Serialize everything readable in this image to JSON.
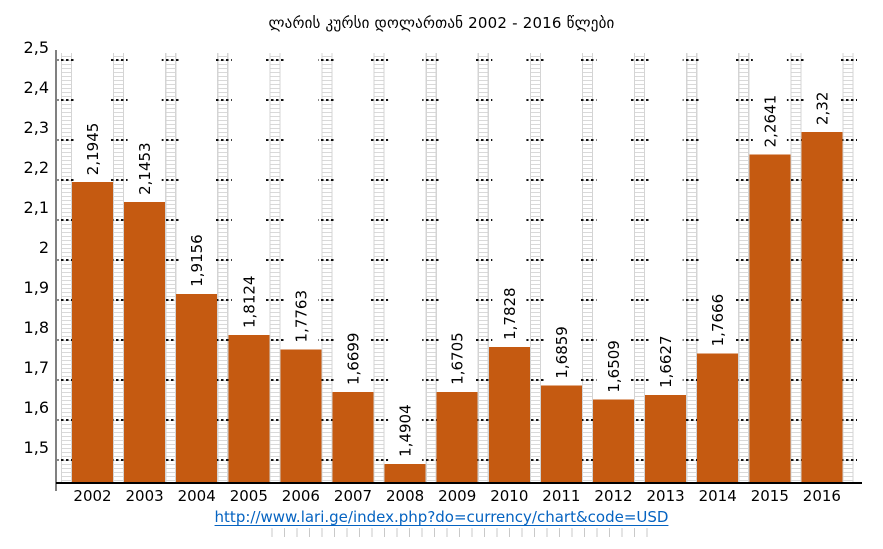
{
  "title": "ლარის კურსი დოლართან 2002 -  2016 წლები",
  "source_link": {
    "text": "http://www.lari.ge/index.php?do=currency/chart&code=USD"
  },
  "chart_data": {
    "type": "bar",
    "title": "ლარის კურსი დოლართან 2002 -  2016 წლები",
    "categories": [
      "2002",
      "2003",
      "2004",
      "2005",
      "2006",
      "2007",
      "2008",
      "2009",
      "2010",
      "2011",
      "2012",
      "2013",
      "2014",
      "2015",
      "2016"
    ],
    "values": [
      2.1945,
      2.1453,
      1.9156,
      1.8124,
      1.7763,
      1.6699,
      1.4904,
      1.6705,
      1.7828,
      1.6859,
      1.6509,
      1.6627,
      1.7666,
      2.2641,
      2.32
    ],
    "bar_labels": [
      "2,1945",
      "2,1453",
      "1,9156",
      "1,8124",
      "1,7763",
      "1,6699",
      "1,4904",
      "1,6705",
      "1,7828",
      "1,6859",
      "1,6509",
      "1,6627",
      "1,7666",
      "2,2641",
      "2,32"
    ],
    "xlabel": "",
    "ylabel": "",
    "y_axis": {
      "tick_labels": [
        "2,5",
        "2,4",
        "2,3",
        "2,2",
        "2,1",
        "2",
        "1,9",
        "1,8",
        "1,7",
        "1,6",
        "1,5"
      ],
      "tick_values": [
        2.5,
        2.4,
        2.3,
        2.2,
        2.1,
        2.0,
        1.9,
        1.8,
        1.7,
        1.6,
        1.5
      ],
      "major_unit": 0.1,
      "minor_unit": 0.01,
      "decimal_separator": ","
    },
    "legend": "none",
    "grid": "major horizontal dashed black; minor horizontal light-gray bands between bars",
    "colors": {
      "bar": "#C55A11",
      "major_grid": "#111111",
      "minor_grid": "#D9D9D9",
      "band_rail": "#D4D4D4",
      "axis": "#000000",
      "label_text": "#000000",
      "link": "#0563C1",
      "ruler_tick": "#C9C9C9"
    }
  }
}
